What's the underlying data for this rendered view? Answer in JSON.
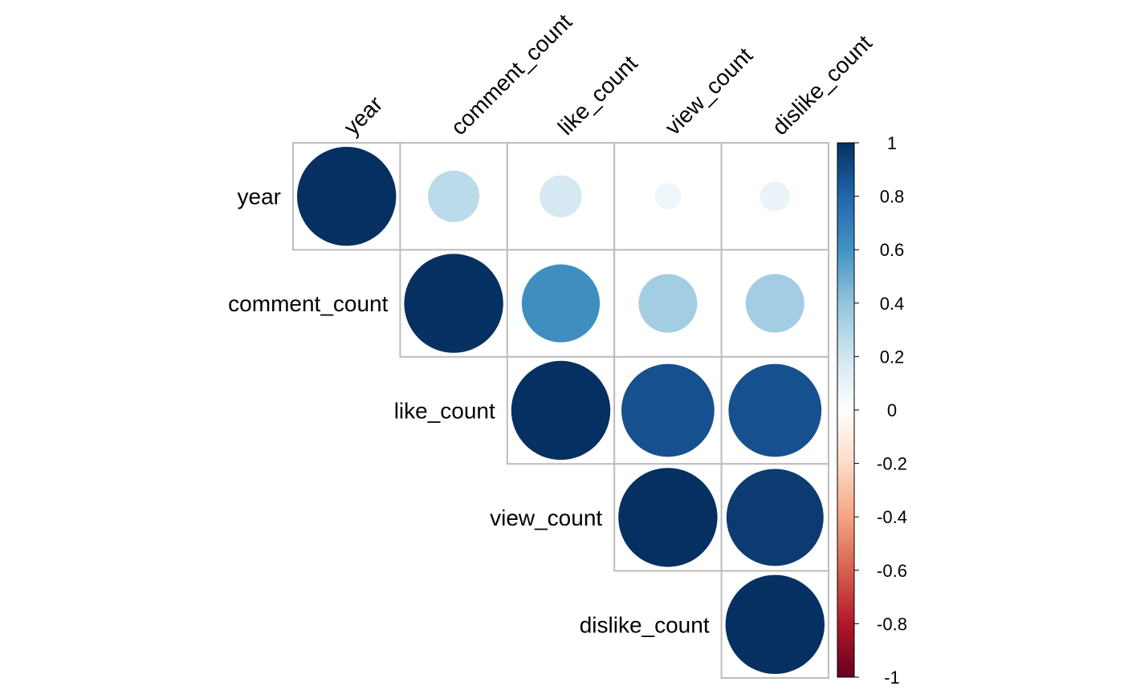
{
  "chart_data": {
    "type": "heatmap",
    "style": "upper-triangle circle correlation matrix",
    "variables": [
      "year",
      "comment_count",
      "like_count",
      "view_count",
      "dislike_count"
    ],
    "matrix": [
      [
        1.0,
        0.27,
        0.18,
        0.07,
        0.09
      ],
      [
        0.27,
        1.0,
        0.62,
        0.35,
        0.35
      ],
      [
        0.18,
        0.62,
        1.0,
        0.88,
        0.88
      ],
      [
        0.07,
        0.35,
        0.88,
        1.0,
        0.96
      ],
      [
        0.09,
        0.35,
        0.88,
        0.96,
        1.0
      ]
    ],
    "colorbar": {
      "ticks": [
        "1",
        "0.8",
        "0.6",
        "0.4",
        "0.2",
        "0",
        "-0.2",
        "-0.4",
        "-0.6",
        "-0.8",
        "-1"
      ],
      "range": [
        -1,
        1
      ],
      "colors": [
        "#67001F",
        "#B2182B",
        "#D6604D",
        "#F4A582",
        "#FDDBC7",
        "#FFFFFF",
        "#D1E5F0",
        "#92C5DE",
        "#4393C3",
        "#2166AC",
        "#053061"
      ]
    },
    "grid": true
  }
}
